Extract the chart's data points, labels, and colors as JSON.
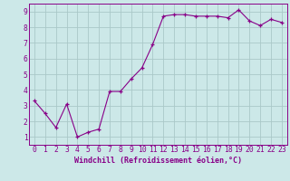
{
  "x": [
    0,
    1,
    2,
    3,
    4,
    5,
    6,
    7,
    8,
    9,
    10,
    11,
    12,
    13,
    14,
    15,
    16,
    17,
    18,
    19,
    20,
    21,
    22,
    23
  ],
  "y": [
    3.3,
    2.5,
    1.6,
    3.1,
    1.0,
    1.3,
    1.5,
    3.9,
    3.9,
    4.7,
    5.4,
    6.9,
    8.7,
    8.8,
    8.8,
    8.7,
    8.7,
    8.7,
    8.6,
    9.1,
    8.4,
    8.1,
    8.5,
    8.3
  ],
  "line_color": "#880088",
  "marker": "+",
  "marker_size": 3,
  "background_color": "#cce8e8",
  "grid_color": "#aac8c8",
  "xlabel": "Windchill (Refroidissement éolien,°C)",
  "ylabel_ticks": [
    1,
    2,
    3,
    4,
    5,
    6,
    7,
    8,
    9
  ],
  "xlim": [
    -0.5,
    23.5
  ],
  "ylim": [
    0.5,
    9.5
  ],
  "xlabel_fontsize": 6.0,
  "tick_fontsize": 5.8
}
